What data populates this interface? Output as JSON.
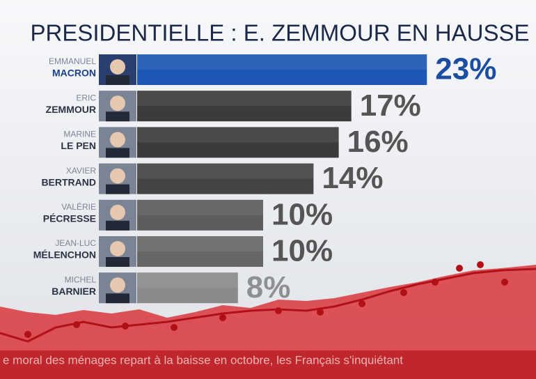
{
  "chart_data": {
    "type": "bar",
    "title": "PRESIDENTIELLE : E. ZEMMOUR EN HAUSSE",
    "first_names": [
      "EMMANUEL",
      "ERIC",
      "MARINE",
      "XAVIER",
      "VALÉRIE",
      "JEAN-LUC",
      "MICHEL"
    ],
    "categories": [
      "MACRON",
      "ZEMMOUR",
      "LE PEN",
      "BERTRAND",
      "PÉCRESSE",
      "MÉLENCHON",
      "BARNIER"
    ],
    "values": [
      23,
      17,
      16,
      14,
      10,
      10,
      8
    ],
    "value_labels": [
      "23%",
      "17%",
      "16%",
      "14%",
      "10%",
      "10%",
      "8%"
    ],
    "colors": [
      "#1c57b5",
      "#3b3b3b",
      "#3b3b3b",
      "#444444",
      "#5c5c5c",
      "#666666",
      "#8a8a8a"
    ]
  },
  "ticker": "e moral des ménages repart à la baisse en octobre, les Français s'inquiétant"
}
